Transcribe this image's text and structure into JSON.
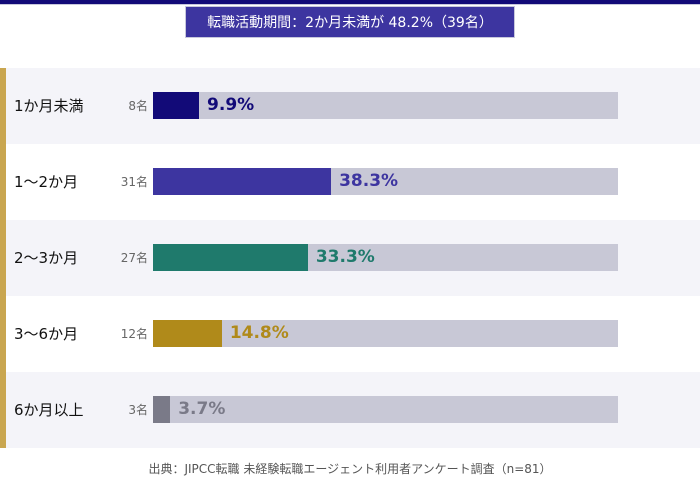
{
  "chart_data": {
    "type": "bar",
    "orientation": "horizontal",
    "title": "転職活動期間：2か月未満が 48.2%（39名）",
    "categories": [
      "1か月未満",
      "1〜2か月",
      "2〜3か月",
      "3〜6か月",
      "6か月以上"
    ],
    "counts": [
      "8名",
      "31名",
      "27名",
      "12名",
      "3名"
    ],
    "values": [
      9.9,
      38.3,
      33.3,
      14.8,
      3.7
    ],
    "value_labels": [
      "9.9%",
      "38.3%",
      "33.3%",
      "14.8%",
      "3.7%"
    ],
    "colors": [
      "#120a78",
      "#3d35a0",
      "#1f7a6c",
      "#b08a1a",
      "#7a7a88"
    ],
    "xlim": [
      0,
      100
    ],
    "source": "出典：JIPCC転職 未経験転職エージェント利用者アンケート調査（n=81）"
  }
}
